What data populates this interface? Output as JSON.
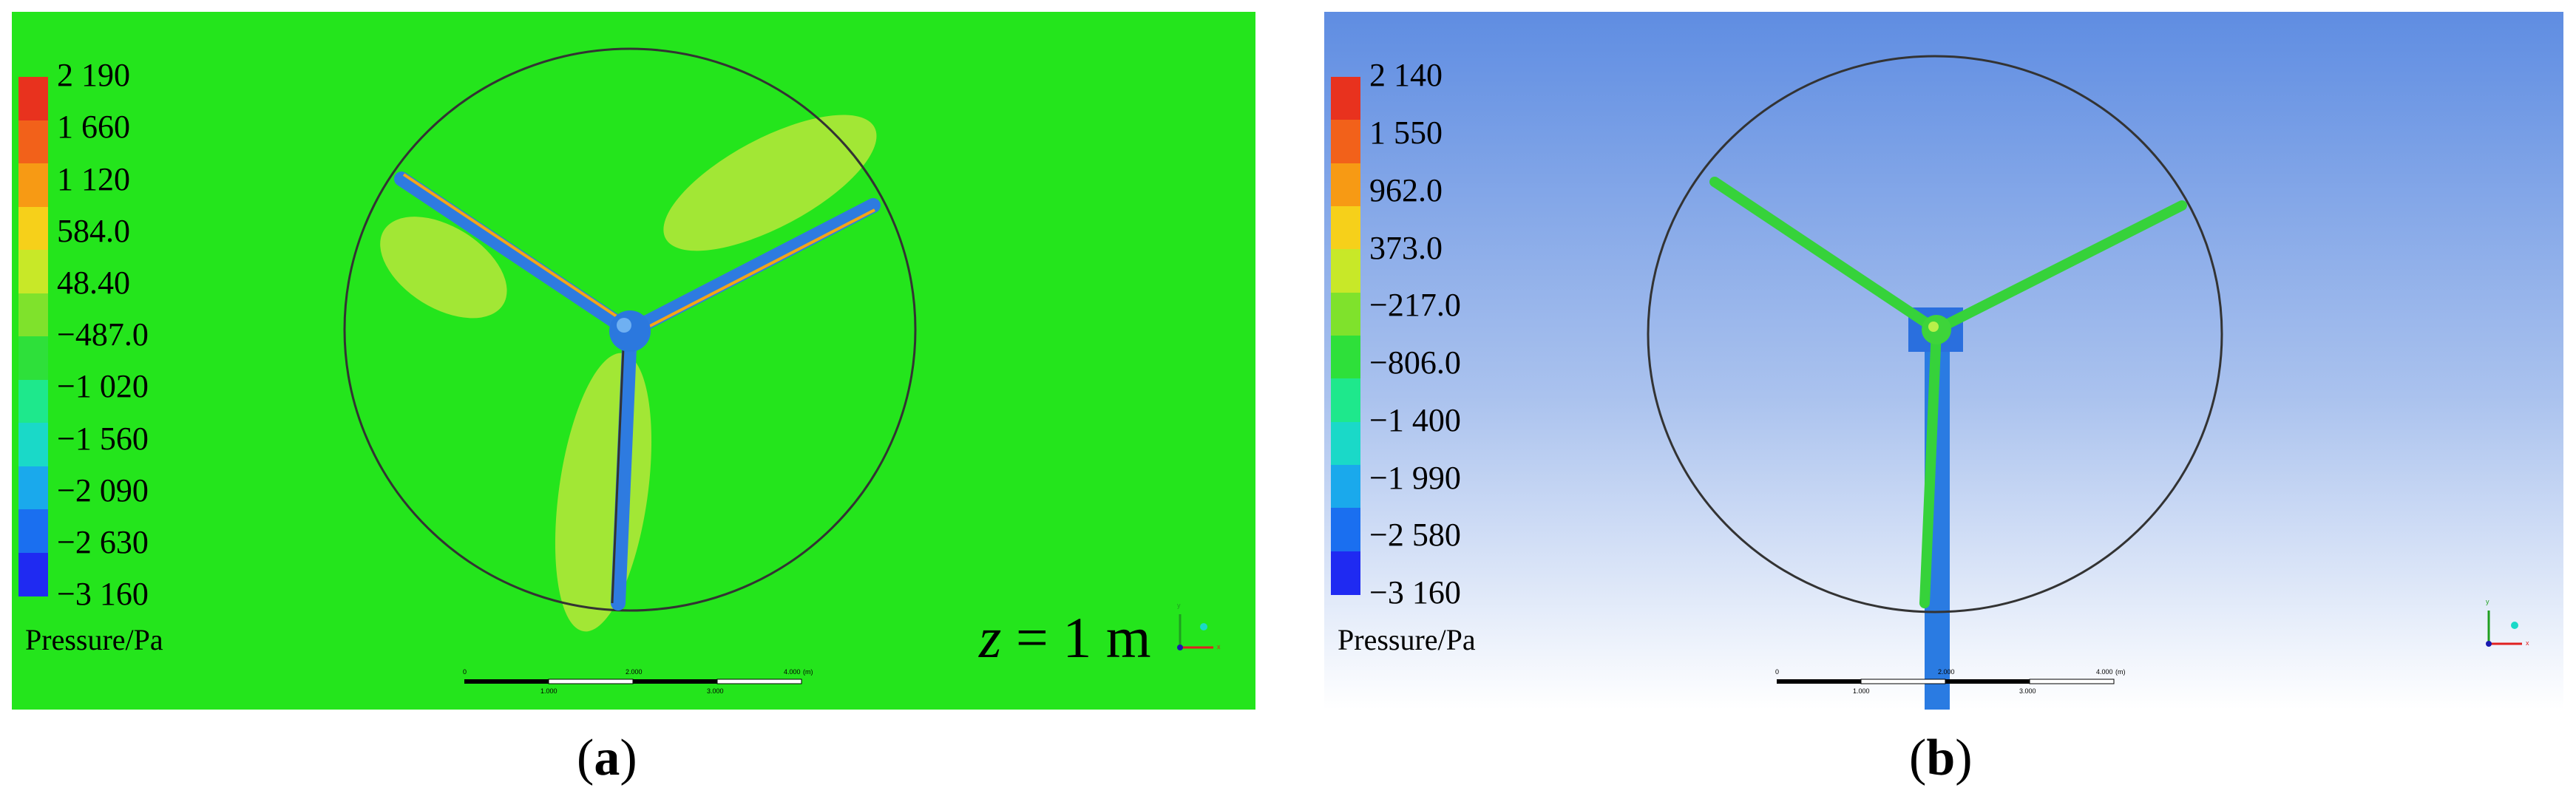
{
  "panels": [
    {
      "id": "a",
      "caption": "a",
      "background": "#24e51c",
      "legend_title": "Pressure/Pa",
      "ticks": [
        "2 190",
        "1 660",
        "1 120",
        "584.0",
        "48.40",
        "−487.0",
        "−1 020",
        "−1 560",
        "−2 090",
        "−2 630",
        "−3 160"
      ],
      "annotation_italic": "z",
      "annotation_rest": " = 1 m",
      "scale_top": [
        "0",
        "2.000",
        "4.000",
        "(m)"
      ],
      "scale_bottom": [
        "1.000",
        "3.000"
      ],
      "axis_labels": [
        "y",
        "x"
      ]
    },
    {
      "id": "b",
      "caption": "b",
      "background": "#6f97e4",
      "legend_title": "Pressure/Pa",
      "ticks": [
        "2 140",
        "1 550",
        "962.0",
        "373.0",
        "−217.0",
        "−806.0",
        "−1 400",
        "−1 990",
        "−2 580",
        "−3 160"
      ],
      "scale_top": [
        "0",
        "2.000",
        "4.000",
        "(m)"
      ],
      "scale_bottom": [
        "1.000",
        "3.000"
      ],
      "axis_labels": [
        "y",
        "x"
      ]
    }
  ],
  "colormap": [
    "#e8321e",
    "#f2611a",
    "#f79a14",
    "#f6d01a",
    "#c8e828",
    "#7fe22c",
    "#2ee03a",
    "#1ee88c",
    "#1ad9c8",
    "#1aa9ec",
    "#1a6ff0",
    "#1f2af2"
  ]
}
